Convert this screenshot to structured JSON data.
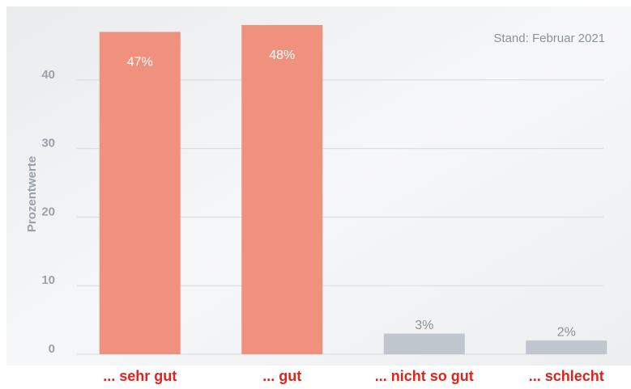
{
  "chart_data": {
    "type": "bar",
    "subtitle": "Stand: Februar 2021",
    "y_label": "Prozentwerte",
    "categories": [
      "... sehr gut",
      "... gut",
      "... nicht so gut",
      "... schlecht"
    ],
    "values": [
      47,
      48,
      3,
      2
    ],
    "value_labels": [
      "47%",
      "48%",
      "3%",
      "2%"
    ],
    "colors": [
      "#f0917d",
      "#f0917d",
      "#bfc6cd",
      "#bfc6cd"
    ],
    "ylim": [
      0,
      50
    ],
    "yticks": [
      0,
      10,
      20,
      30,
      40
    ],
    "grid": true
  }
}
